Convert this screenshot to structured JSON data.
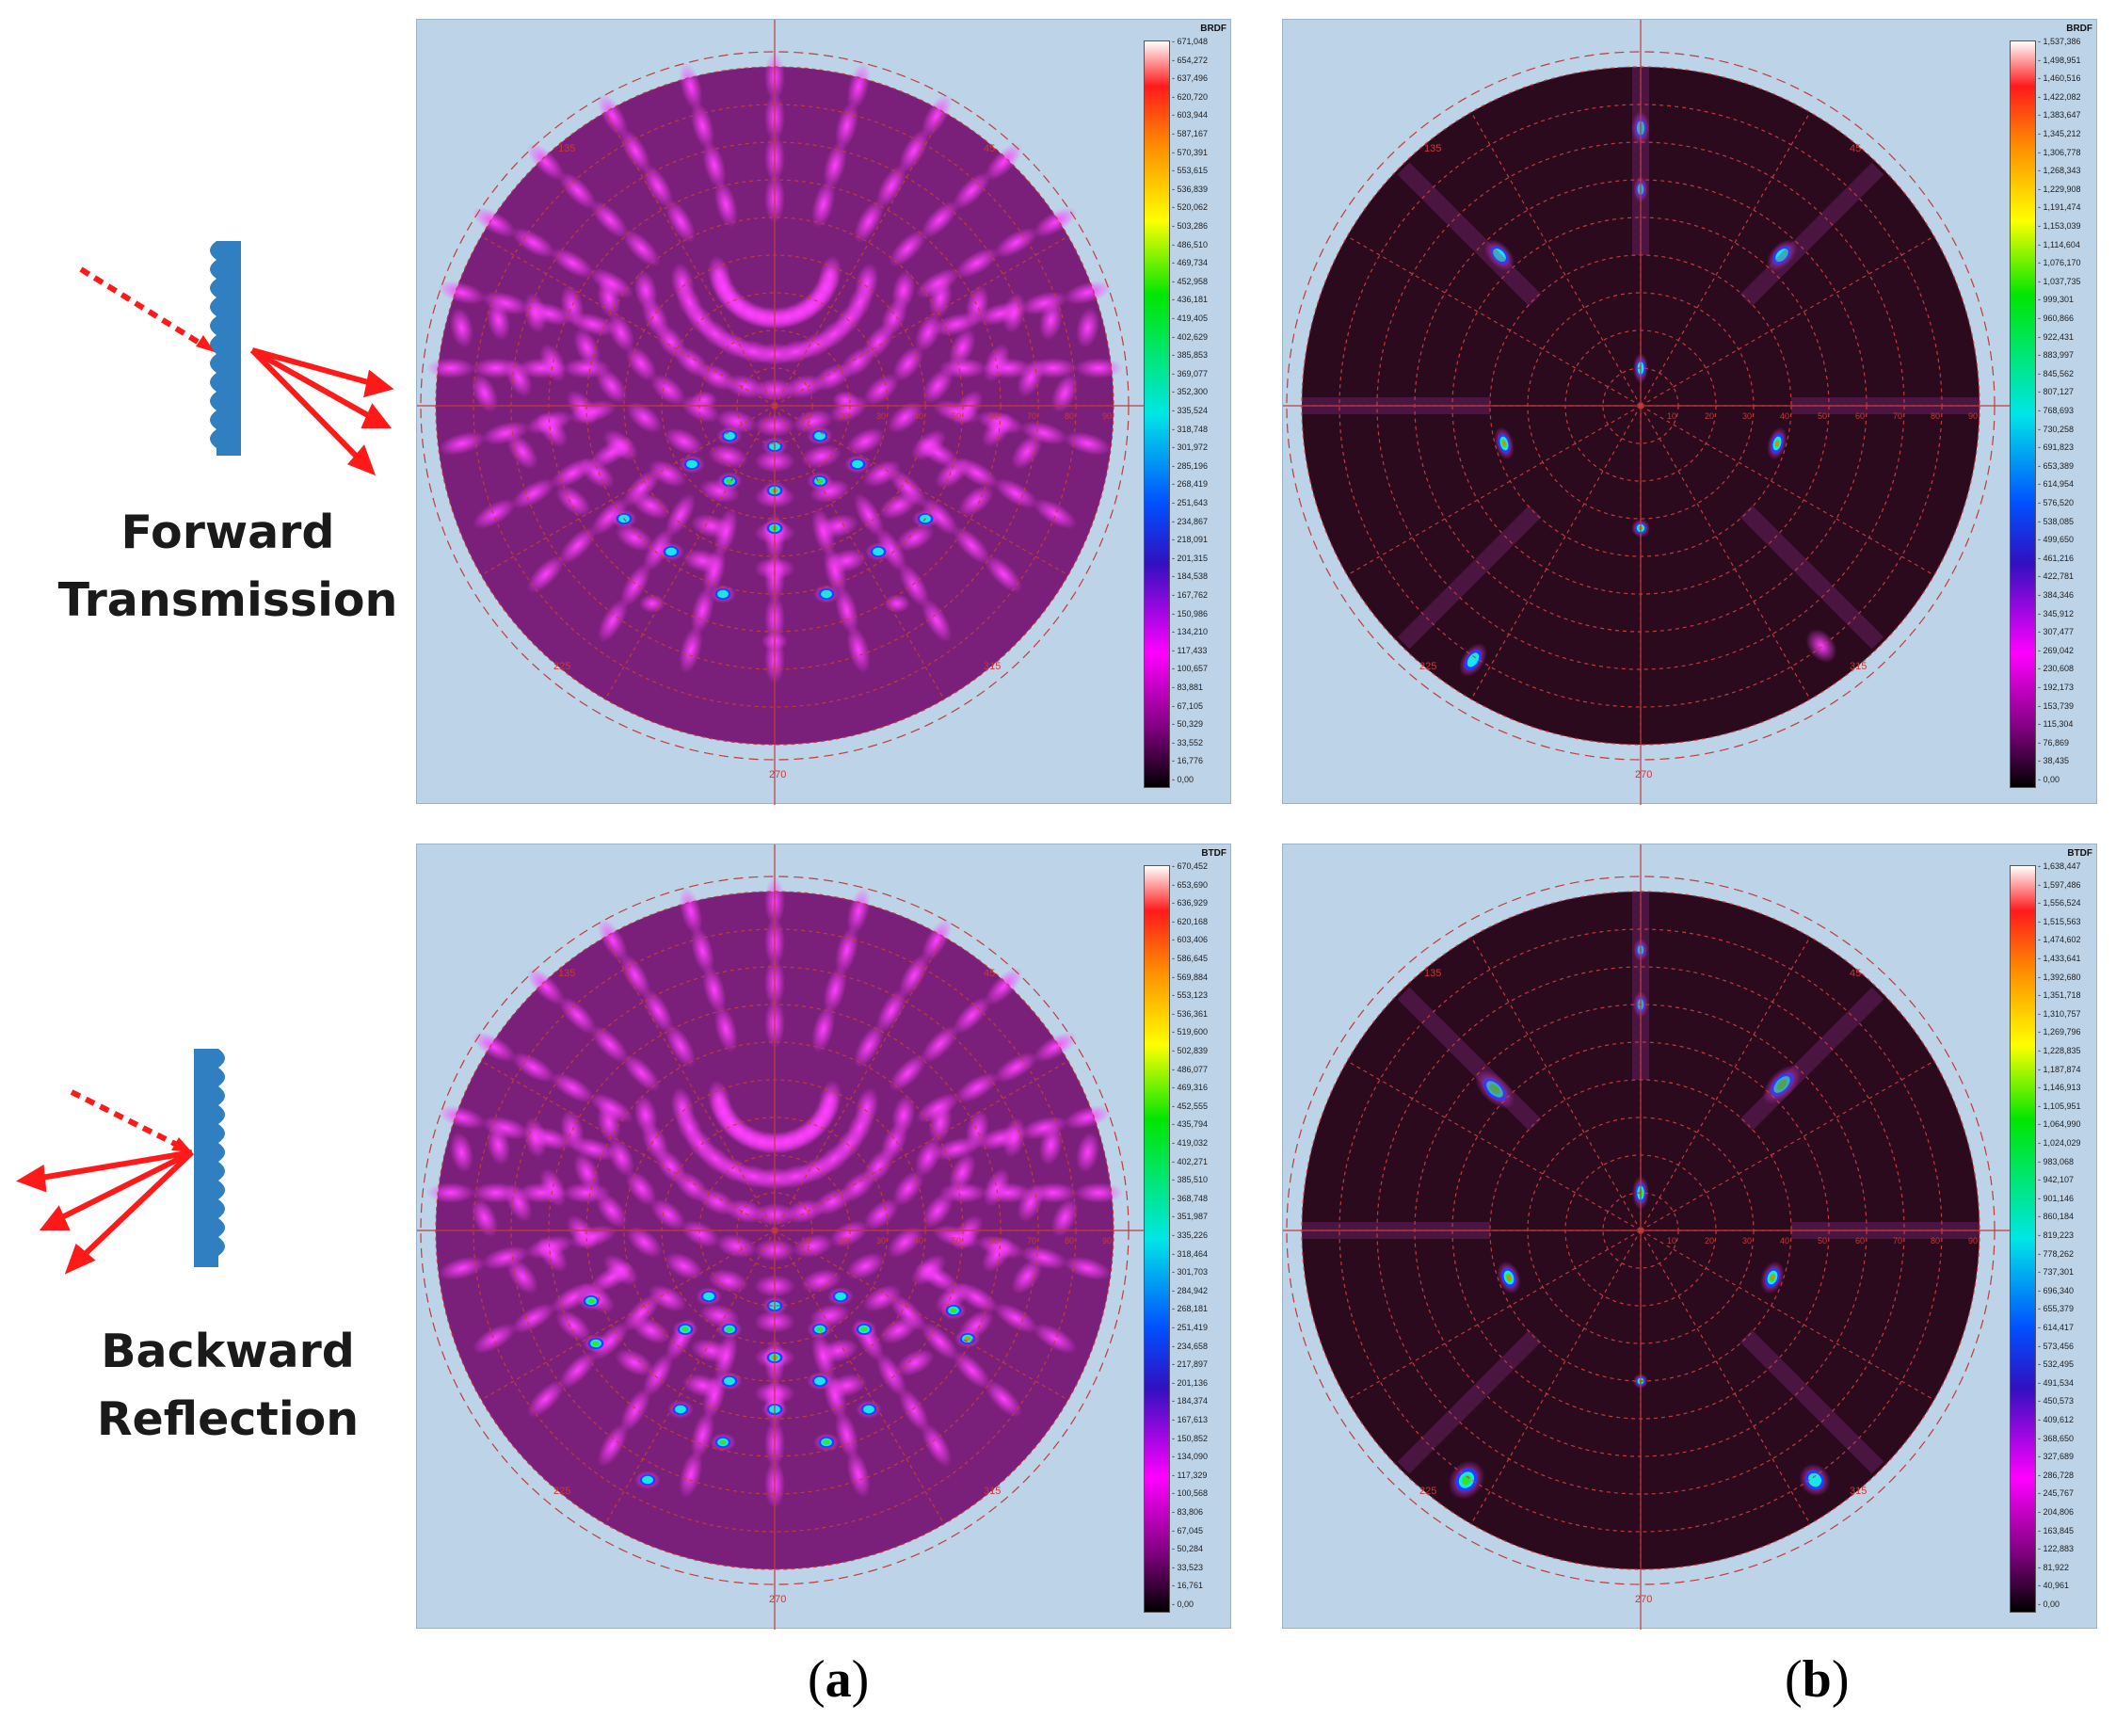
{
  "labels": {
    "forward": [
      "Forward",
      "Transmission"
    ],
    "backward": [
      "Backward",
      "Reflection"
    ]
  },
  "captions": {
    "a": "a",
    "b": "b"
  },
  "polar_axis": {
    "angles": [
      "135",
      "45",
      "225",
      "315",
      "270"
    ],
    "radial": [
      "10",
      "20",
      "30",
      "40",
      "50",
      "60",
      "70",
      "80",
      "90"
    ]
  },
  "panels": [
    {
      "id": "top-left",
      "colorbar_title": "BRDF",
      "colorbar_ticks": [
        "671,048",
        "654,272",
        "637,496",
        "620,720",
        "603,944",
        "587,167",
        "570,391",
        "553,615",
        "536,839",
        "520,062",
        "503,286",
        "486,510",
        "469,734",
        "452,958",
        "436,181",
        "419,405",
        "402,629",
        "385,853",
        "369,077",
        "352,300",
        "335,524",
        "318,748",
        "301,972",
        "285,196",
        "268,419",
        "251,643",
        "234,867",
        "218,091",
        "201,315",
        "184,538",
        "167,762",
        "150,986",
        "134,210",
        "117,433",
        "100,657",
        "83,881",
        "67,105",
        "50,329",
        "33,552",
        "16,776",
        "0,00"
      ]
    },
    {
      "id": "top-right",
      "colorbar_title": "BRDF",
      "colorbar_ticks": [
        "1,537,386",
        "1,498,951",
        "1,460,516",
        "1,422,082",
        "1,383,647",
        "1,345,212",
        "1,306,778",
        "1,268,343",
        "1,229,908",
        "1,191,474",
        "1,153,039",
        "1,114,604",
        "1,076,170",
        "1,037,735",
        "999,301",
        "960,866",
        "922,431",
        "883,997",
        "845,562",
        "807,127",
        "768,693",
        "730,258",
        "691,823",
        "653,389",
        "614,954",
        "576,520",
        "538,085",
        "499,650",
        "461,216",
        "422,781",
        "384,346",
        "345,912",
        "307,477",
        "269,042",
        "230,608",
        "192,173",
        "153,739",
        "115,304",
        "76,869",
        "38,435",
        "0,00"
      ]
    },
    {
      "id": "bottom-left",
      "colorbar_title": "BTDF",
      "colorbar_ticks": [
        "670,452",
        "653,690",
        "636,929",
        "620,168",
        "603,406",
        "586,645",
        "569,884",
        "553,123",
        "536,361",
        "519,600",
        "502,839",
        "486,077",
        "469,316",
        "452,555",
        "435,794",
        "419,032",
        "402,271",
        "385,510",
        "368,748",
        "351,987",
        "335,226",
        "318,464",
        "301,703",
        "284,942",
        "268,181",
        "251,419",
        "234,658",
        "217,897",
        "201,136",
        "184,374",
        "167,613",
        "150,852",
        "134,090",
        "117,329",
        "100,568",
        "83,806",
        "67,045",
        "50,284",
        "33,523",
        "16,761",
        "0,00"
      ]
    },
    {
      "id": "bottom-right",
      "colorbar_title": "BTDF",
      "colorbar_ticks": [
        "1,638,447",
        "1,597,486",
        "1,556,524",
        "1,515,563",
        "1,474,602",
        "1,433,641",
        "1,392,680",
        "1,351,718",
        "1,310,757",
        "1,269,796",
        "1,228,835",
        "1,187,874",
        "1,146,913",
        "1,105,951",
        "1,064,990",
        "1,024,029",
        "983,068",
        "942,107",
        "901,146",
        "860,184",
        "819,223",
        "778,262",
        "737,301",
        "696,340",
        "655,379",
        "614,417",
        "573,456",
        "532,495",
        "491,534",
        "450,573",
        "409,612",
        "368,650",
        "327,689",
        "286,728",
        "245,767",
        "204,806",
        "163,845",
        "122,883",
        "81,922",
        "40,961",
        "0,00"
      ]
    }
  ],
  "colors": {
    "panel_bg": "#bcd3e8",
    "disk_bg": "#7a1f7a",
    "disk_dark": "#2a0a1c",
    "grid": "#c23b3b",
    "arrow": "#ff1a1a",
    "grating": "#2f7fc1"
  }
}
